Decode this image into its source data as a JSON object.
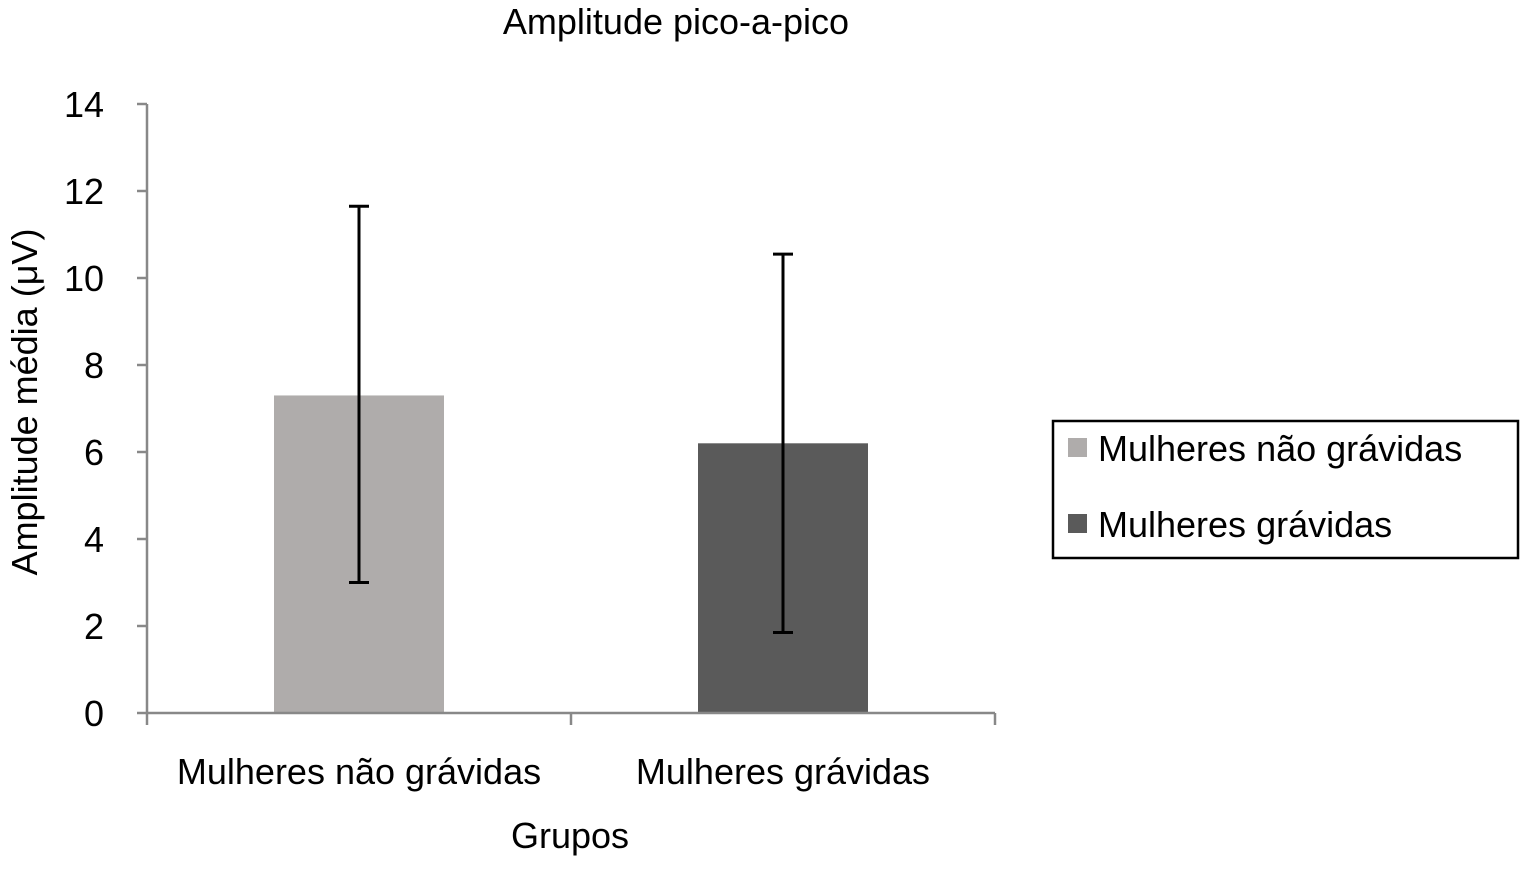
{
  "chart_data": {
    "type": "bar",
    "title": "Amplitude pico-a-pico",
    "xlabel": "Grupos",
    "ylabel": "Amplitude média  (μV)",
    "ylim": [
      0,
      14
    ],
    "yticks": [
      0,
      2,
      4,
      6,
      8,
      10,
      12,
      14
    ],
    "categories": [
      "Mulheres não grávidas",
      "Mulheres grávidas"
    ],
    "values": [
      7.3,
      6.2
    ],
    "error_low": [
      3.0,
      1.85
    ],
    "error_high": [
      11.65,
      10.55
    ],
    "colors": [
      "#afacab",
      "#5a5a5a"
    ],
    "legend": {
      "placement": "right",
      "entries": [
        {
          "label": "Mulheres não grávidas",
          "color": "#afacab"
        },
        {
          "label": "Mulheres grávidas",
          "color": "#5a5a5a"
        }
      ]
    },
    "grid": false
  }
}
